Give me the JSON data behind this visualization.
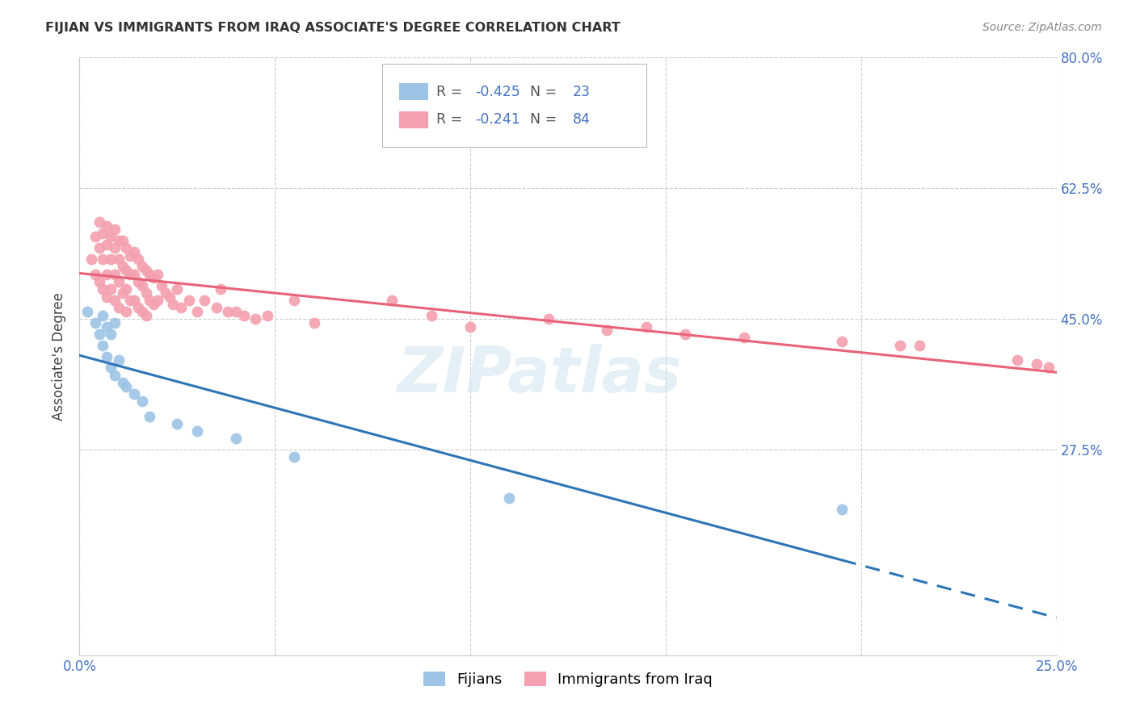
{
  "title": "FIJIAN VS IMMIGRANTS FROM IRAQ ASSOCIATE'S DEGREE CORRELATION CHART",
  "source": "Source: ZipAtlas.com",
  "ylabel": "Associate's Degree",
  "xlim": [
    0.0,
    0.25
  ],
  "ylim": [
    0.0,
    0.8
  ],
  "yticks": [
    0.0,
    0.275,
    0.45,
    0.625,
    0.8
  ],
  "yticklabels": [
    "",
    "27.5%",
    "45.0%",
    "62.5%",
    "80.0%"
  ],
  "fijian_color": "#9dc3e6",
  "iraq_color": "#f4a0b0",
  "fijian_line_color": "#2e75b6",
  "iraq_line_color": "#e8637a",
  "fijian_R": -0.425,
  "fijian_N": 23,
  "iraq_R": -0.241,
  "iraq_N": 84,
  "legend_label_fijian": "Fijians",
  "legend_label_iraq": "Immigrants from Iraq",
  "watermark": "ZIPatlas",
  "fijian_x": [
    0.002,
    0.004,
    0.005,
    0.006,
    0.006,
    0.007,
    0.007,
    0.008,
    0.008,
    0.009,
    0.009,
    0.01,
    0.011,
    0.012,
    0.014,
    0.016,
    0.018,
    0.025,
    0.03,
    0.04,
    0.055,
    0.11,
    0.195
  ],
  "fijian_y": [
    0.46,
    0.445,
    0.43,
    0.455,
    0.415,
    0.44,
    0.4,
    0.43,
    0.385,
    0.445,
    0.375,
    0.395,
    0.365,
    0.36,
    0.35,
    0.34,
    0.32,
    0.31,
    0.3,
    0.29,
    0.265,
    0.21,
    0.195
  ],
  "iraq_x": [
    0.003,
    0.004,
    0.004,
    0.005,
    0.005,
    0.005,
    0.006,
    0.006,
    0.006,
    0.007,
    0.007,
    0.007,
    0.007,
    0.008,
    0.008,
    0.008,
    0.009,
    0.009,
    0.009,
    0.009,
    0.01,
    0.01,
    0.01,
    0.01,
    0.011,
    0.011,
    0.011,
    0.012,
    0.012,
    0.012,
    0.012,
    0.013,
    0.013,
    0.013,
    0.014,
    0.014,
    0.014,
    0.015,
    0.015,
    0.015,
    0.016,
    0.016,
    0.016,
    0.017,
    0.017,
    0.017,
    0.018,
    0.018,
    0.019,
    0.019,
    0.02,
    0.02,
    0.021,
    0.022,
    0.023,
    0.024,
    0.025,
    0.026,
    0.028,
    0.03,
    0.032,
    0.035,
    0.036,
    0.038,
    0.04,
    0.042,
    0.045,
    0.048,
    0.055,
    0.06,
    0.08,
    0.09,
    0.1,
    0.12,
    0.135,
    0.145,
    0.155,
    0.17,
    0.195,
    0.21,
    0.215,
    0.24,
    0.245,
    0.248
  ],
  "iraq_y": [
    0.53,
    0.56,
    0.51,
    0.58,
    0.545,
    0.5,
    0.565,
    0.53,
    0.49,
    0.575,
    0.55,
    0.51,
    0.48,
    0.56,
    0.53,
    0.49,
    0.57,
    0.545,
    0.51,
    0.475,
    0.555,
    0.53,
    0.5,
    0.465,
    0.555,
    0.52,
    0.485,
    0.545,
    0.515,
    0.49,
    0.46,
    0.535,
    0.51,
    0.475,
    0.54,
    0.51,
    0.475,
    0.53,
    0.5,
    0.465,
    0.52,
    0.495,
    0.46,
    0.515,
    0.485,
    0.455,
    0.51,
    0.475,
    0.505,
    0.47,
    0.51,
    0.475,
    0.495,
    0.485,
    0.48,
    0.47,
    0.49,
    0.465,
    0.475,
    0.46,
    0.475,
    0.465,
    0.49,
    0.46,
    0.46,
    0.455,
    0.45,
    0.455,
    0.475,
    0.445,
    0.475,
    0.455,
    0.44,
    0.45,
    0.435,
    0.44,
    0.43,
    0.425,
    0.42,
    0.415,
    0.415,
    0.395,
    0.39,
    0.385
  ]
}
